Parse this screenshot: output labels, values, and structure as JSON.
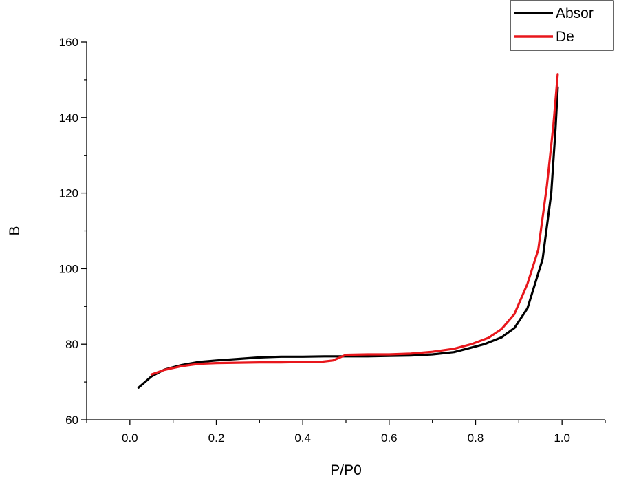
{
  "chart_data": {
    "type": "line",
    "title": "",
    "xlabel": "P/P0",
    "ylabel": "B",
    "xlim": [
      -0.1,
      1.1
    ],
    "ylim": [
      60,
      160
    ],
    "xticks": [
      0.0,
      0.2,
      0.4,
      0.6,
      0.8,
      1.0
    ],
    "xtick_labels": [
      "0.0",
      "0.2",
      "0.4",
      "0.6",
      "0.8",
      "1.0"
    ],
    "yticks": [
      60,
      80,
      100,
      120,
      140,
      160
    ],
    "ytick_labels": [
      "60",
      "80",
      "100",
      "120",
      "140",
      "160"
    ],
    "grid": false,
    "legend_position": "top-right",
    "series": [
      {
        "name": "Absor",
        "color": "#000000",
        "x": [
          0.02,
          0.05,
          0.08,
          0.12,
          0.16,
          0.2,
          0.25,
          0.3,
          0.35,
          0.4,
          0.45,
          0.5,
          0.55,
          0.6,
          0.65,
          0.7,
          0.75,
          0.78,
          0.82,
          0.86,
          0.89,
          0.92,
          0.955,
          0.975,
          0.985,
          0.99
        ],
        "y": [
          68.5,
          71.5,
          73.3,
          74.5,
          75.3,
          75.7,
          76.1,
          76.5,
          76.7,
          76.7,
          76.8,
          76.8,
          76.8,
          76.9,
          77.0,
          77.3,
          77.9,
          78.8,
          80.0,
          81.8,
          84.3,
          89.5,
          102.5,
          120.0,
          137.0,
          148.0
        ]
      },
      {
        "name": "De",
        "color": "#e8171c",
        "x": [
          0.05,
          0.08,
          0.12,
          0.16,
          0.2,
          0.25,
          0.3,
          0.35,
          0.4,
          0.44,
          0.47,
          0.5,
          0.55,
          0.6,
          0.65,
          0.7,
          0.75,
          0.79,
          0.83,
          0.86,
          0.89,
          0.92,
          0.945,
          0.965,
          0.98,
          0.99
        ],
        "y": [
          72.0,
          73.2,
          74.2,
          74.8,
          75.0,
          75.1,
          75.2,
          75.2,
          75.3,
          75.3,
          75.7,
          77.2,
          77.3,
          77.3,
          77.5,
          78.0,
          78.8,
          80.0,
          81.7,
          84.0,
          88.0,
          96.0,
          105.0,
          122.0,
          138.0,
          151.5
        ]
      }
    ]
  }
}
